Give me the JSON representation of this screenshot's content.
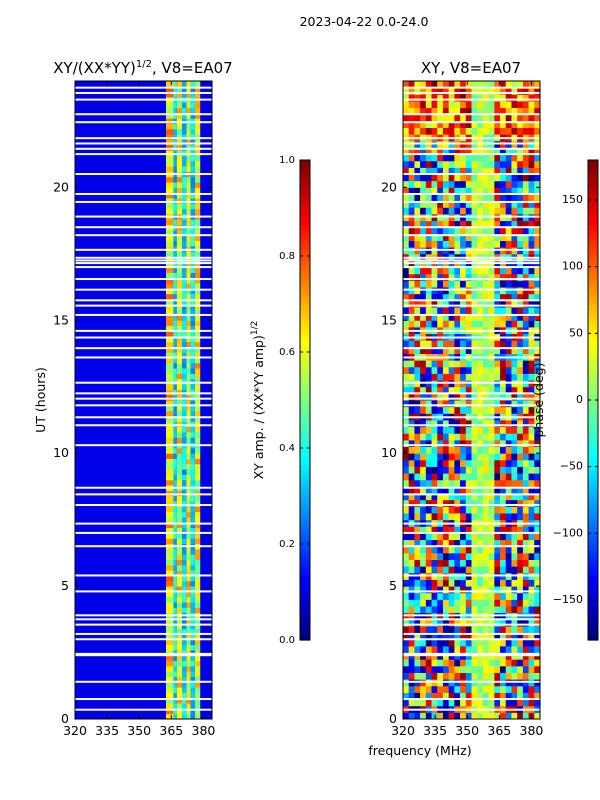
{
  "suptitle": "2023-04-22 0.0-24.0",
  "colors": {
    "bg": "#ffffff",
    "frame": "#000000",
    "gap": "#ffffff"
  },
  "chart_data": [
    {
      "type": "heatmap",
      "title_base": "XY/(XX*YY)",
      "title_sup": "1/2",
      "title_rest": ", V8=EA07",
      "xlabel": "",
      "ylabel": "UT (hours)",
      "xlim": [
        320,
        384
      ],
      "ylim": [
        0,
        24
      ],
      "xticks": [
        320,
        335,
        350,
        365,
        380
      ],
      "yticks": [
        0,
        5,
        10,
        15,
        20
      ],
      "colormap": "jet",
      "value_range": [
        0.0,
        1.0
      ],
      "strong_channels_mhz": [
        [
          362.5,
          366
        ],
        [
          367.5,
          370
        ],
        [
          372,
          374
        ],
        [
          376,
          378.5
        ]
      ],
      "colorbar": {
        "label_base": "XY amp. / (XX*YY amp)",
        "label_sup": "1/2",
        "ticks": [
          0.0,
          0.2,
          0.4,
          0.6,
          0.8,
          1.0
        ],
        "tick_labels": [
          "0.0",
          "0.2",
          "0.4",
          "0.6",
          "0.8",
          "1.0"
        ]
      }
    },
    {
      "type": "heatmap",
      "title": "XY, V8=EA07",
      "xlabel": "frequency (MHz)",
      "ylabel": "",
      "xlim": [
        320,
        384
      ],
      "ylim": [
        0,
        24
      ],
      "xticks": [
        320,
        335,
        350,
        365,
        380
      ],
      "yticks": [
        0,
        5,
        10,
        15,
        20
      ],
      "colormap": "jet",
      "value_range": [
        -180,
        180
      ],
      "colorbar": {
        "label": "phase (deg)",
        "ticks": [
          -150,
          -100,
          -50,
          0,
          50,
          100,
          150
        ],
        "tick_labels": [
          "−150",
          "−100",
          "−50",
          "0",
          "50",
          "100",
          "150"
        ]
      }
    }
  ],
  "flagged_ut_hours": [
    0.35,
    0.75,
    1.4,
    2.4,
    2.45,
    3.0,
    3.2,
    3.55,
    3.75,
    3.9,
    4.8,
    5.4,
    6.5,
    7.0,
    7.35,
    8.05,
    8.45,
    8.7,
    10.3,
    11.05,
    11.35,
    11.8,
    12.05,
    12.25,
    12.65,
    13.6,
    13.95,
    14.35,
    14.6,
    15.2,
    15.55,
    15.75,
    16.15,
    16.55,
    17.0,
    17.15,
    17.25,
    17.35,
    17.65,
    18.2,
    18.5,
    18.9,
    19.45,
    19.75,
    20.5,
    21.25,
    21.45,
    21.65,
    21.85,
    22.45,
    22.75,
    23.3,
    23.55,
    23.75
  ]
}
